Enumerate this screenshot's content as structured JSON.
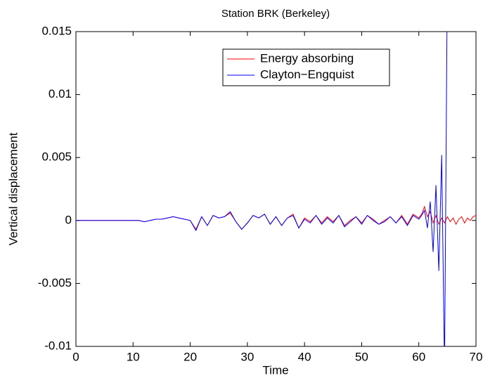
{
  "chart_data": {
    "type": "line",
    "title": "Station BRK (Berkeley)",
    "x_label": "Time",
    "y_label": "Vertical displacement",
    "x": [
      0,
      1,
      2,
      3,
      4,
      5,
      6,
      7,
      8,
      9,
      10,
      11,
      12,
      13,
      14,
      15,
      16,
      17,
      18,
      19,
      20,
      21,
      22,
      23,
      24,
      25,
      26,
      27,
      28,
      29,
      30,
      31,
      32,
      33,
      34,
      35,
      36,
      37,
      38,
      39,
      40,
      41,
      42,
      43,
      44,
      45,
      46,
      47,
      48,
      49,
      50,
      51,
      52,
      53,
      54,
      55,
      56,
      57,
      58,
      59,
      60,
      60.5,
      61,
      61.5,
      62,
      62.5,
      63,
      63.5,
      64,
      64.5,
      65,
      65.5,
      66,
      66.5,
      67,
      67.5,
      68,
      68.5,
      69,
      69.5,
      70
    ],
    "series": [
      {
        "name": "Energy absorbing",
        "color": "#ff0000",
        "values": [
          0,
          0,
          0,
          0,
          0,
          0,
          0,
          0,
          0,
          0,
          0,
          0,
          -0.0001,
          0,
          0.0001,
          0.0001,
          0.0002,
          0.0003,
          0.0002,
          0.0001,
          0,
          -0.0007,
          0.0003,
          -0.0004,
          0.0004,
          0.0002,
          0.0003,
          0.0006,
          -0.0001,
          -0.0007,
          -0.0002,
          0.0004,
          0.0002,
          0.0005,
          -0.0003,
          0.0003,
          -0.0004,
          0.0002,
          0.0005,
          -0.0006,
          0.0002,
          -0.0001,
          0.0004,
          -0.0002,
          0.0003,
          -0.0001,
          0.0004,
          -0.0004,
          0,
          0.0003,
          -0.0002,
          0.0004,
          0.0001,
          -0.0003,
          0,
          0.0003,
          -0.0002,
          0.0004,
          -0.0003,
          0.0005,
          0.0002,
          0.0005,
          0.0011,
          0.0003,
          0.0007,
          -0.0002,
          0.0004,
          -0.0003,
          0.0002,
          -0.0002,
          0.0003,
          -0.0001,
          0.0002,
          -0.0003,
          0.0001,
          0.0003,
          -0.0002,
          0.0002,
          0,
          0.0003,
          0.0004
        ]
      },
      {
        "name": "Clayton−Engquist",
        "color": "#0000ff",
        "values": [
          0,
          0,
          0,
          0,
          0,
          0,
          0,
          0,
          0,
          0,
          0,
          0,
          -0.0001,
          0,
          0.0001,
          0.0001,
          0.0002,
          0.0003,
          0.0002,
          0.0001,
          0,
          -0.0008,
          0.0003,
          -0.0004,
          0.0004,
          0.0002,
          0.0003,
          0.0007,
          -0.0001,
          -0.0007,
          -0.0002,
          0.0004,
          0.0002,
          0.0005,
          -0.0003,
          0.0003,
          -0.0004,
          0.0002,
          0.0004,
          -0.0006,
          0.0001,
          -0.0002,
          0.0004,
          -0.0003,
          0.0002,
          -0.0002,
          0.0004,
          -0.0005,
          -0.0001,
          0.0003,
          -0.0003,
          0.0004,
          0,
          -0.0003,
          -0.0001,
          0.0003,
          -0.0002,
          0.0003,
          -0.0004,
          0.0004,
          0.0001,
          0.0004,
          0.0008,
          -0.0006,
          0.0015,
          -0.0025,
          0.0028,
          -0.004,
          0.0052,
          -0.012,
          0.02,
          null,
          null,
          null,
          null,
          null,
          null,
          null,
          null,
          null,
          null
        ]
      }
    ],
    "xlim": [
      0,
      70
    ],
    "xticks": [
      0,
      10,
      20,
      30,
      40,
      50,
      60,
      70
    ],
    "ylim": [
      -0.01,
      0.015
    ],
    "yticks": [
      -0.01,
      -0.005,
      0,
      0.005,
      0.01,
      0.015
    ],
    "legend": "upper-center"
  }
}
